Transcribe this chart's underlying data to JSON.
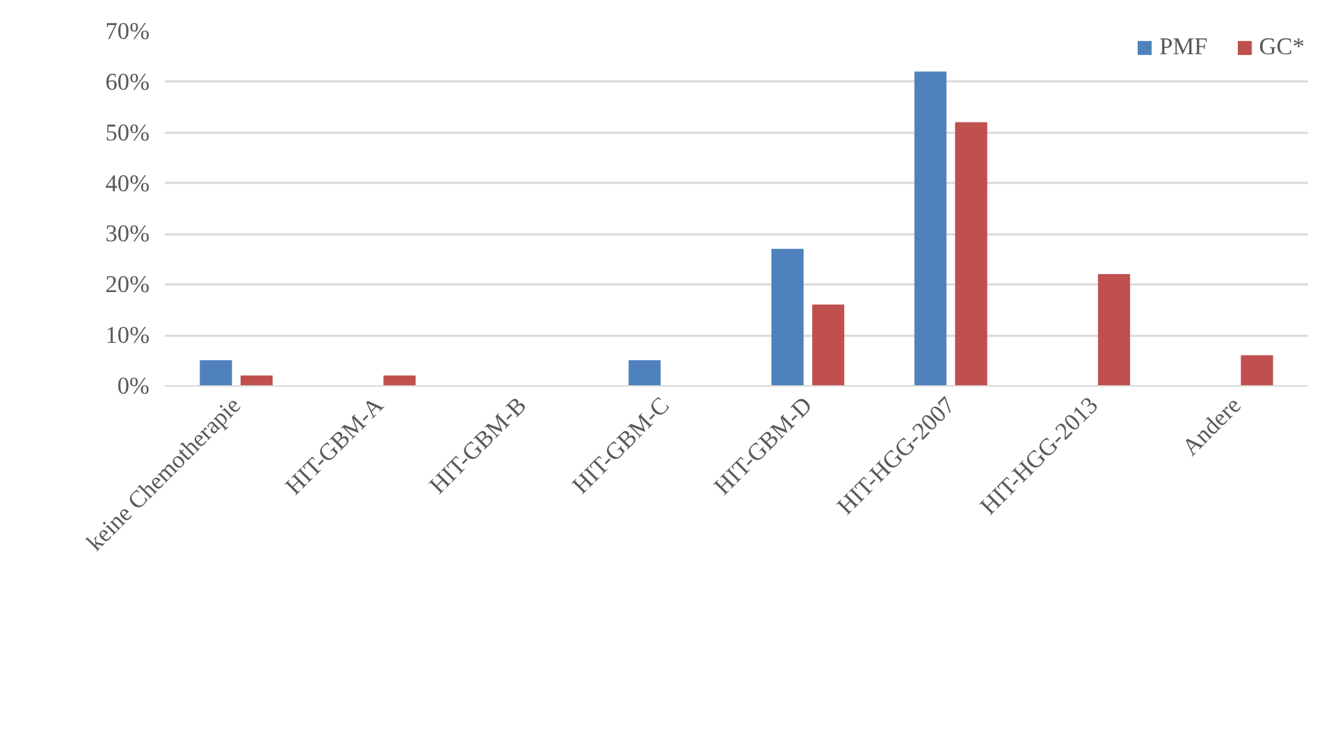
{
  "chart_data": {
    "type": "bar",
    "categories": [
      "keine Chemotherapie",
      "HIT-GBM-A",
      "HIT-GBM-B",
      "HIT-GBM-C",
      "HIT-GBM-D",
      "HIT-HGG-2007",
      "HIT-HGG-2013",
      "Andere"
    ],
    "series": [
      {
        "name": "PMF",
        "color": "#4f81bd",
        "values": [
          5,
          0,
          0,
          5,
          27,
          62,
          0,
          0
        ]
      },
      {
        "name": "GC*",
        "color": "#c0504d",
        "values": [
          2,
          2,
          0,
          0,
          16,
          52,
          22,
          6
        ]
      }
    ],
    "ylim": [
      0,
      70
    ],
    "yticks": [
      {
        "value": 0,
        "label": "0%"
      },
      {
        "value": 10,
        "label": "10%"
      },
      {
        "value": 20,
        "label": "20%"
      },
      {
        "value": 30,
        "label": "30%"
      },
      {
        "value": 40,
        "label": "40%"
      },
      {
        "value": 50,
        "label": "50%"
      },
      {
        "value": 60,
        "label": "60%"
      },
      {
        "value": 70,
        "label": "70%"
      }
    ],
    "grid": "y",
    "legend": "top right"
  }
}
